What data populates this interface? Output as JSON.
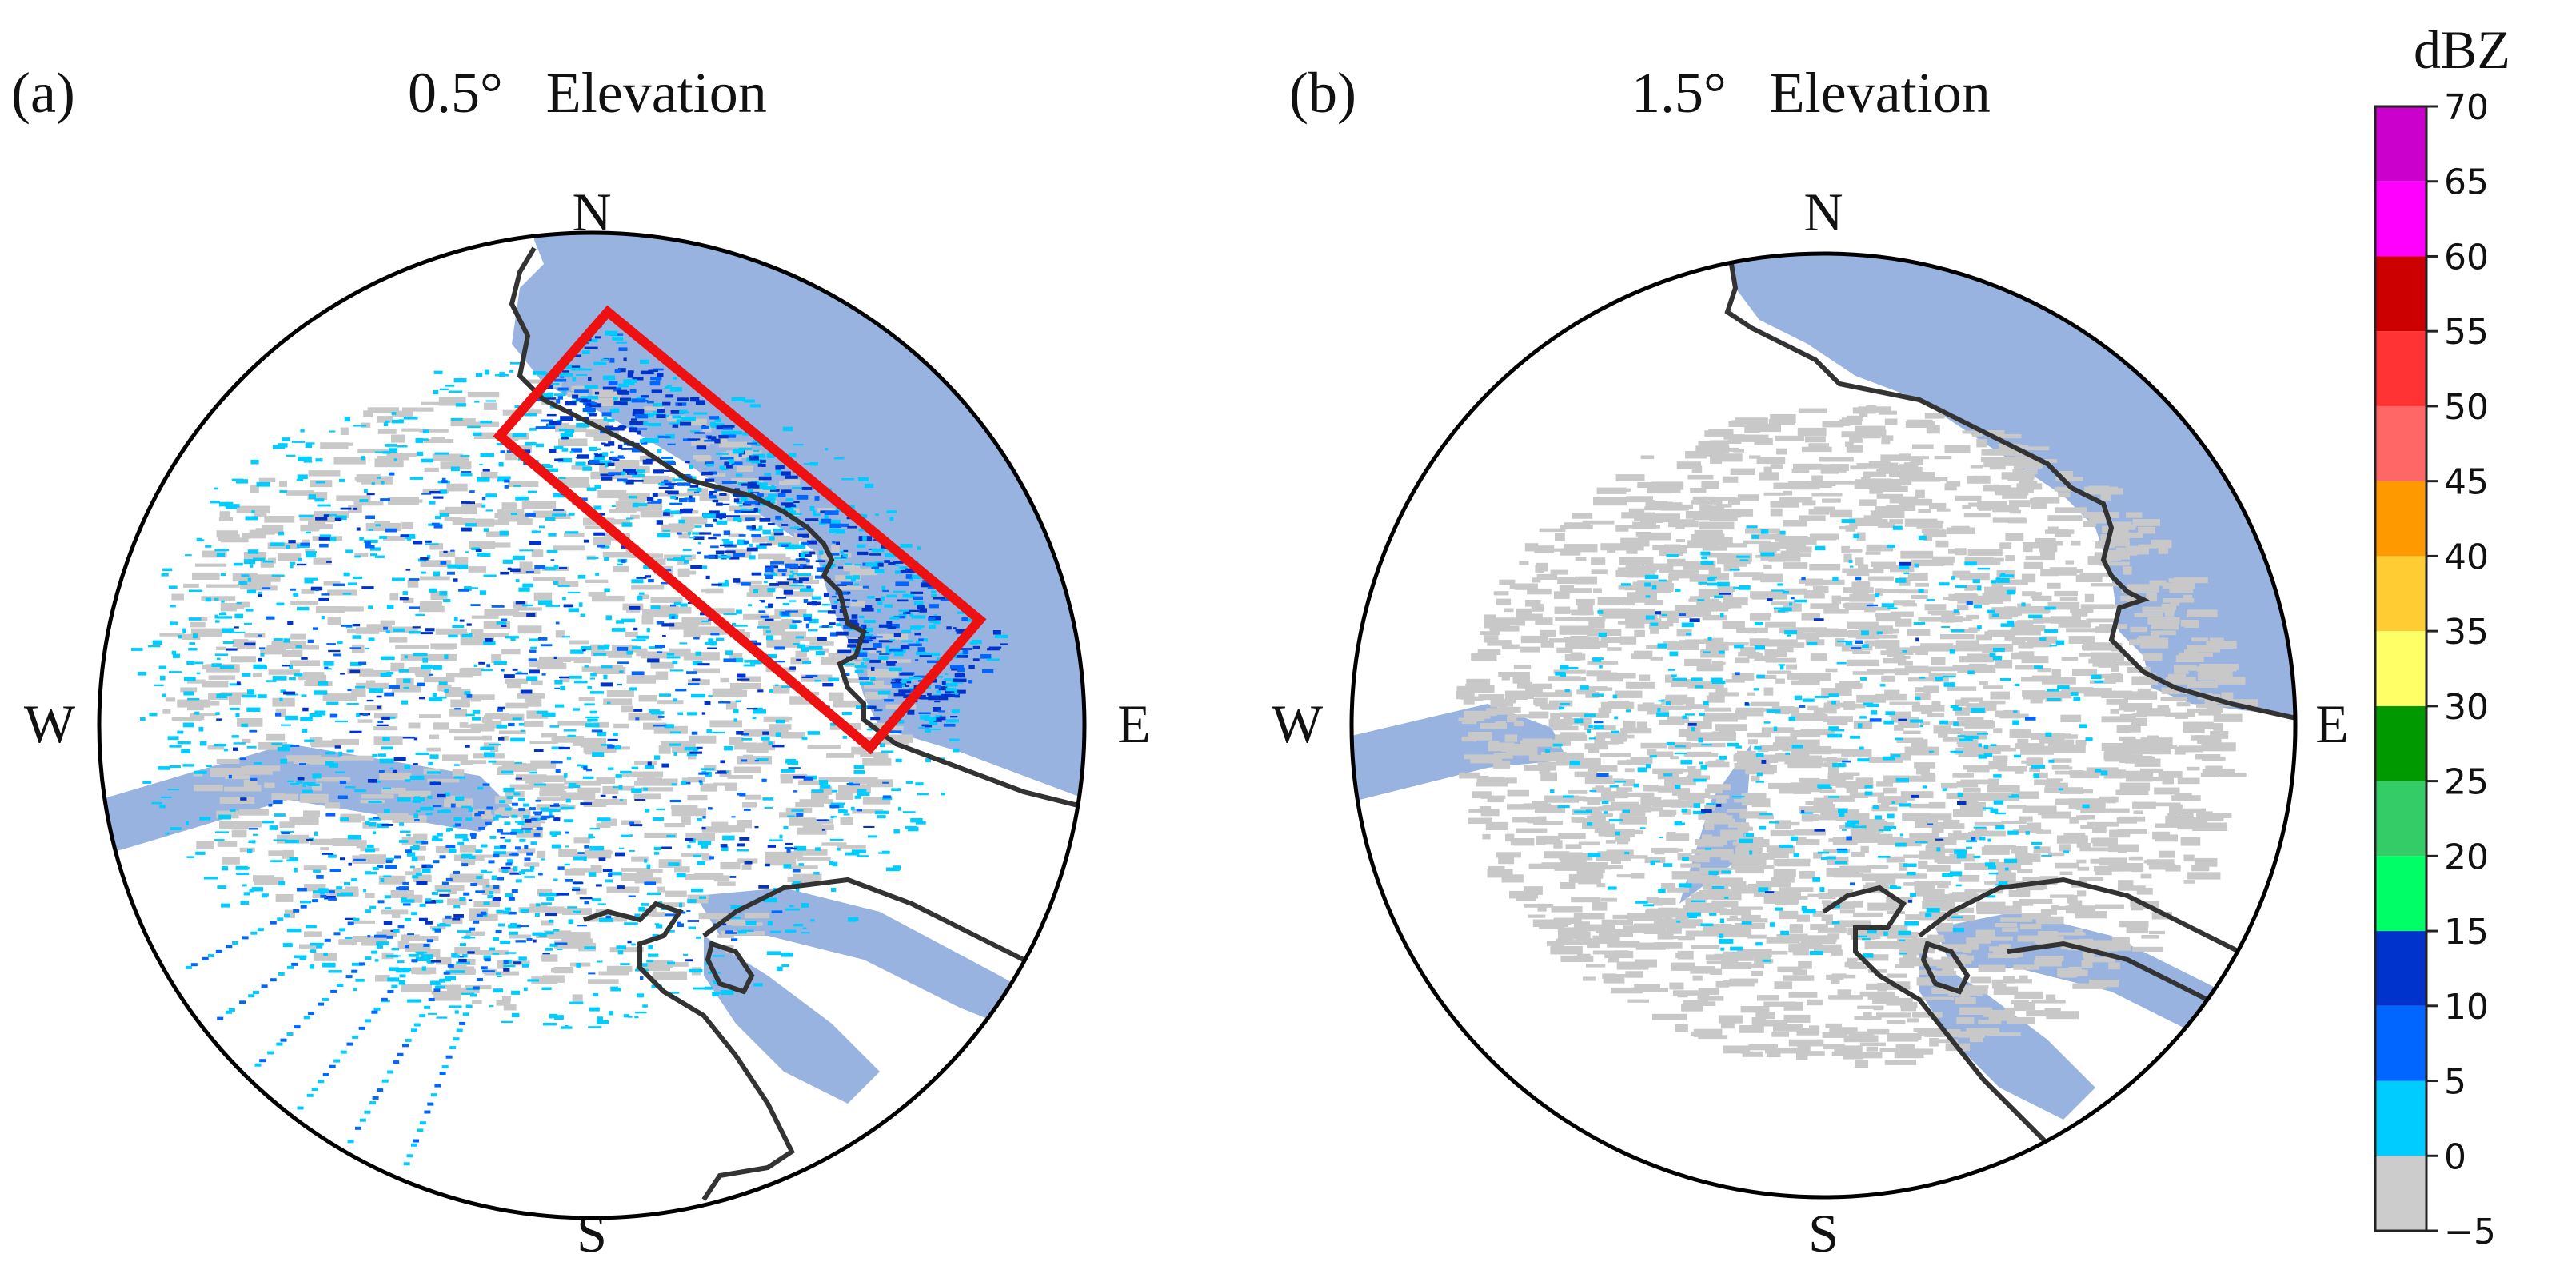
{
  "panels": [
    {
      "id": "a",
      "label": "(a)",
      "title": "0.5°   Elevation",
      "compass": {
        "north": "N",
        "south": "S",
        "west": "W",
        "east": "E"
      },
      "highlight_box": true
    },
    {
      "id": "b",
      "label": "(b)",
      "title": "1.5°   Elevation",
      "compass": {
        "north": "N",
        "south": "S",
        "west": "W",
        "east": "E"
      },
      "highlight_box": false
    }
  ],
  "colorbar": {
    "unit": "dBZ",
    "ticks": [
      "70",
      "65",
      "60",
      "55",
      "50",
      "45",
      "40",
      "35",
      "30",
      "25",
      "20",
      "15",
      "10",
      "5",
      "0",
      "−5"
    ],
    "bins": [
      {
        "from": -5,
        "to": 0,
        "color": "#cccccc"
      },
      {
        "from": 0,
        "to": 5,
        "color": "#00ccff"
      },
      {
        "from": 5,
        "to": 10,
        "color": "#0066ff"
      },
      {
        "from": 10,
        "to": 15,
        "color": "#0033cc"
      },
      {
        "from": 15,
        "to": 20,
        "color": "#00ff66"
      },
      {
        "from": 20,
        "to": 25,
        "color": "#33cc66"
      },
      {
        "from": 25,
        "to": 30,
        "color": "#009900"
      },
      {
        "from": 30,
        "to": 35,
        "color": "#ffff66"
      },
      {
        "from": 35,
        "to": 40,
        "color": "#ffcc33"
      },
      {
        "from": 40,
        "to": 45,
        "color": "#ff9900"
      },
      {
        "from": 45,
        "to": 50,
        "color": "#ff6666"
      },
      {
        "from": 50,
        "to": 55,
        "color": "#ff3333"
      },
      {
        "from": 55,
        "to": 60,
        "color": "#cc0000"
      },
      {
        "from": 60,
        "to": 65,
        "color": "#ff00ff"
      },
      {
        "from": 65,
        "to": 70,
        "color": "#cc00cc"
      }
    ]
  },
  "colors": {
    "water": "#99b3e0",
    "coastline": "#333333",
    "highlight": "#ee1111",
    "clutter_gray": "#c8c8c8"
  }
}
